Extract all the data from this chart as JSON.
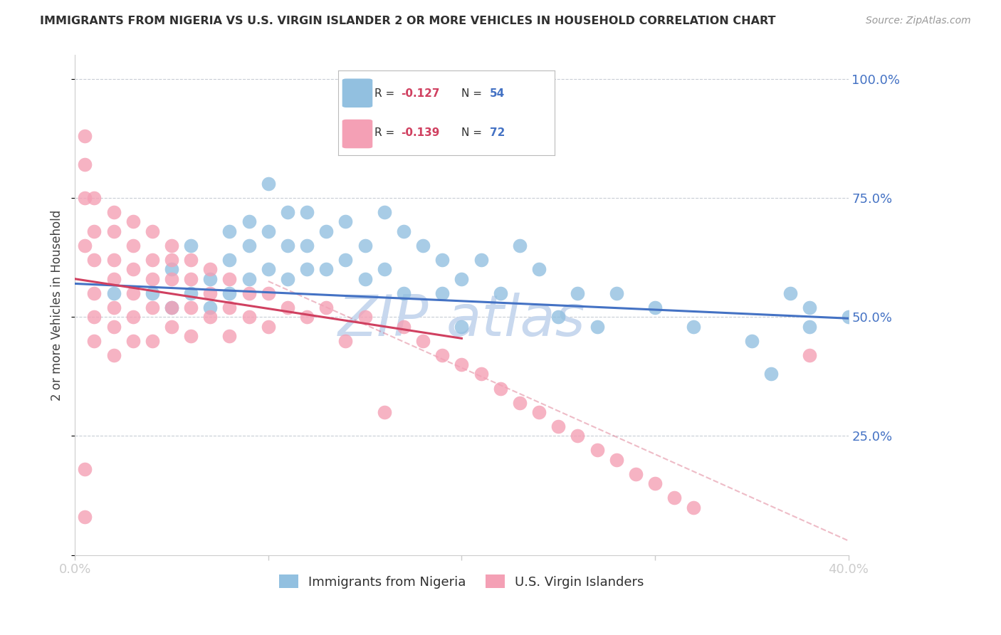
{
  "title": "IMMIGRANTS FROM NIGERIA VS U.S. VIRGIN ISLANDER 2 OR MORE VEHICLES IN HOUSEHOLD CORRELATION CHART",
  "source": "Source: ZipAtlas.com",
  "ylabel": "2 or more Vehicles in Household",
  "ylim": [
    0.0,
    1.05
  ],
  "xlim": [
    0.0,
    0.4
  ],
  "legend_entry1_r": "-0.127",
  "legend_entry1_n": "54",
  "legend_entry2_r": "-0.139",
  "legend_entry2_n": "72",
  "legend_label1": "Immigrants from Nigeria",
  "legend_label2": "U.S. Virgin Islanders",
  "blue_color": "#92C0E0",
  "pink_color": "#F4A0B5",
  "line_blue": "#4472C4",
  "line_pink": "#D04060",
  "watermark_color": "#C8D8EE",
  "title_color": "#303030",
  "axis_label_color": "#404040",
  "tick_label_color": "#4472C4",
  "background_color": "#FFFFFF",
  "blue_scatter_x": [
    0.02,
    0.04,
    0.05,
    0.05,
    0.06,
    0.06,
    0.07,
    0.07,
    0.08,
    0.08,
    0.08,
    0.09,
    0.09,
    0.09,
    0.1,
    0.1,
    0.1,
    0.11,
    0.11,
    0.11,
    0.12,
    0.12,
    0.12,
    0.13,
    0.13,
    0.14,
    0.14,
    0.15,
    0.15,
    0.16,
    0.16,
    0.17,
    0.17,
    0.18,
    0.19,
    0.19,
    0.2,
    0.2,
    0.21,
    0.22,
    0.23,
    0.24,
    0.25,
    0.26,
    0.27,
    0.28,
    0.3,
    0.32,
    0.35,
    0.37,
    0.38,
    0.38,
    0.4,
    0.36
  ],
  "blue_scatter_y": [
    0.55,
    0.55,
    0.6,
    0.52,
    0.65,
    0.55,
    0.58,
    0.52,
    0.68,
    0.62,
    0.55,
    0.7,
    0.65,
    0.58,
    0.78,
    0.68,
    0.6,
    0.72,
    0.65,
    0.58,
    0.72,
    0.65,
    0.6,
    0.68,
    0.6,
    0.7,
    0.62,
    0.65,
    0.58,
    0.72,
    0.6,
    0.68,
    0.55,
    0.65,
    0.62,
    0.55,
    0.58,
    0.48,
    0.62,
    0.55,
    0.65,
    0.6,
    0.5,
    0.55,
    0.48,
    0.55,
    0.52,
    0.48,
    0.45,
    0.55,
    0.52,
    0.48,
    0.5,
    0.38
  ],
  "pink_scatter_x": [
    0.005,
    0.005,
    0.005,
    0.005,
    0.005,
    0.01,
    0.01,
    0.01,
    0.01,
    0.01,
    0.01,
    0.02,
    0.02,
    0.02,
    0.02,
    0.02,
    0.02,
    0.02,
    0.03,
    0.03,
    0.03,
    0.03,
    0.03,
    0.03,
    0.04,
    0.04,
    0.04,
    0.04,
    0.04,
    0.05,
    0.05,
    0.05,
    0.05,
    0.05,
    0.06,
    0.06,
    0.06,
    0.06,
    0.07,
    0.07,
    0.07,
    0.08,
    0.08,
    0.08,
    0.09,
    0.09,
    0.1,
    0.1,
    0.11,
    0.12,
    0.13,
    0.14,
    0.15,
    0.16,
    0.17,
    0.18,
    0.19,
    0.2,
    0.21,
    0.22,
    0.23,
    0.24,
    0.25,
    0.26,
    0.27,
    0.28,
    0.29,
    0.3,
    0.31,
    0.32,
    0.38,
    0.005
  ],
  "pink_scatter_y": [
    0.88,
    0.82,
    0.75,
    0.65,
    0.18,
    0.75,
    0.68,
    0.62,
    0.55,
    0.5,
    0.45,
    0.72,
    0.68,
    0.62,
    0.58,
    0.52,
    0.48,
    0.42,
    0.7,
    0.65,
    0.6,
    0.55,
    0.5,
    0.45,
    0.68,
    0.62,
    0.58,
    0.52,
    0.45,
    0.65,
    0.62,
    0.58,
    0.52,
    0.48,
    0.62,
    0.58,
    0.52,
    0.46,
    0.6,
    0.55,
    0.5,
    0.58,
    0.52,
    0.46,
    0.55,
    0.5,
    0.55,
    0.48,
    0.52,
    0.5,
    0.52,
    0.45,
    0.5,
    0.3,
    0.48,
    0.45,
    0.42,
    0.4,
    0.38,
    0.35,
    0.32,
    0.3,
    0.27,
    0.25,
    0.22,
    0.2,
    0.17,
    0.15,
    0.12,
    0.1,
    0.42,
    0.08
  ],
  "blue_line_x": [
    0.0,
    0.4
  ],
  "blue_line_y": [
    0.57,
    0.497
  ],
  "pink_line_x": [
    0.0,
    0.2
  ],
  "pink_line_y": [
    0.58,
    0.455
  ],
  "dashed_line_x": [
    0.1,
    0.4
  ],
  "dashed_line_y": [
    0.575,
    0.03
  ]
}
